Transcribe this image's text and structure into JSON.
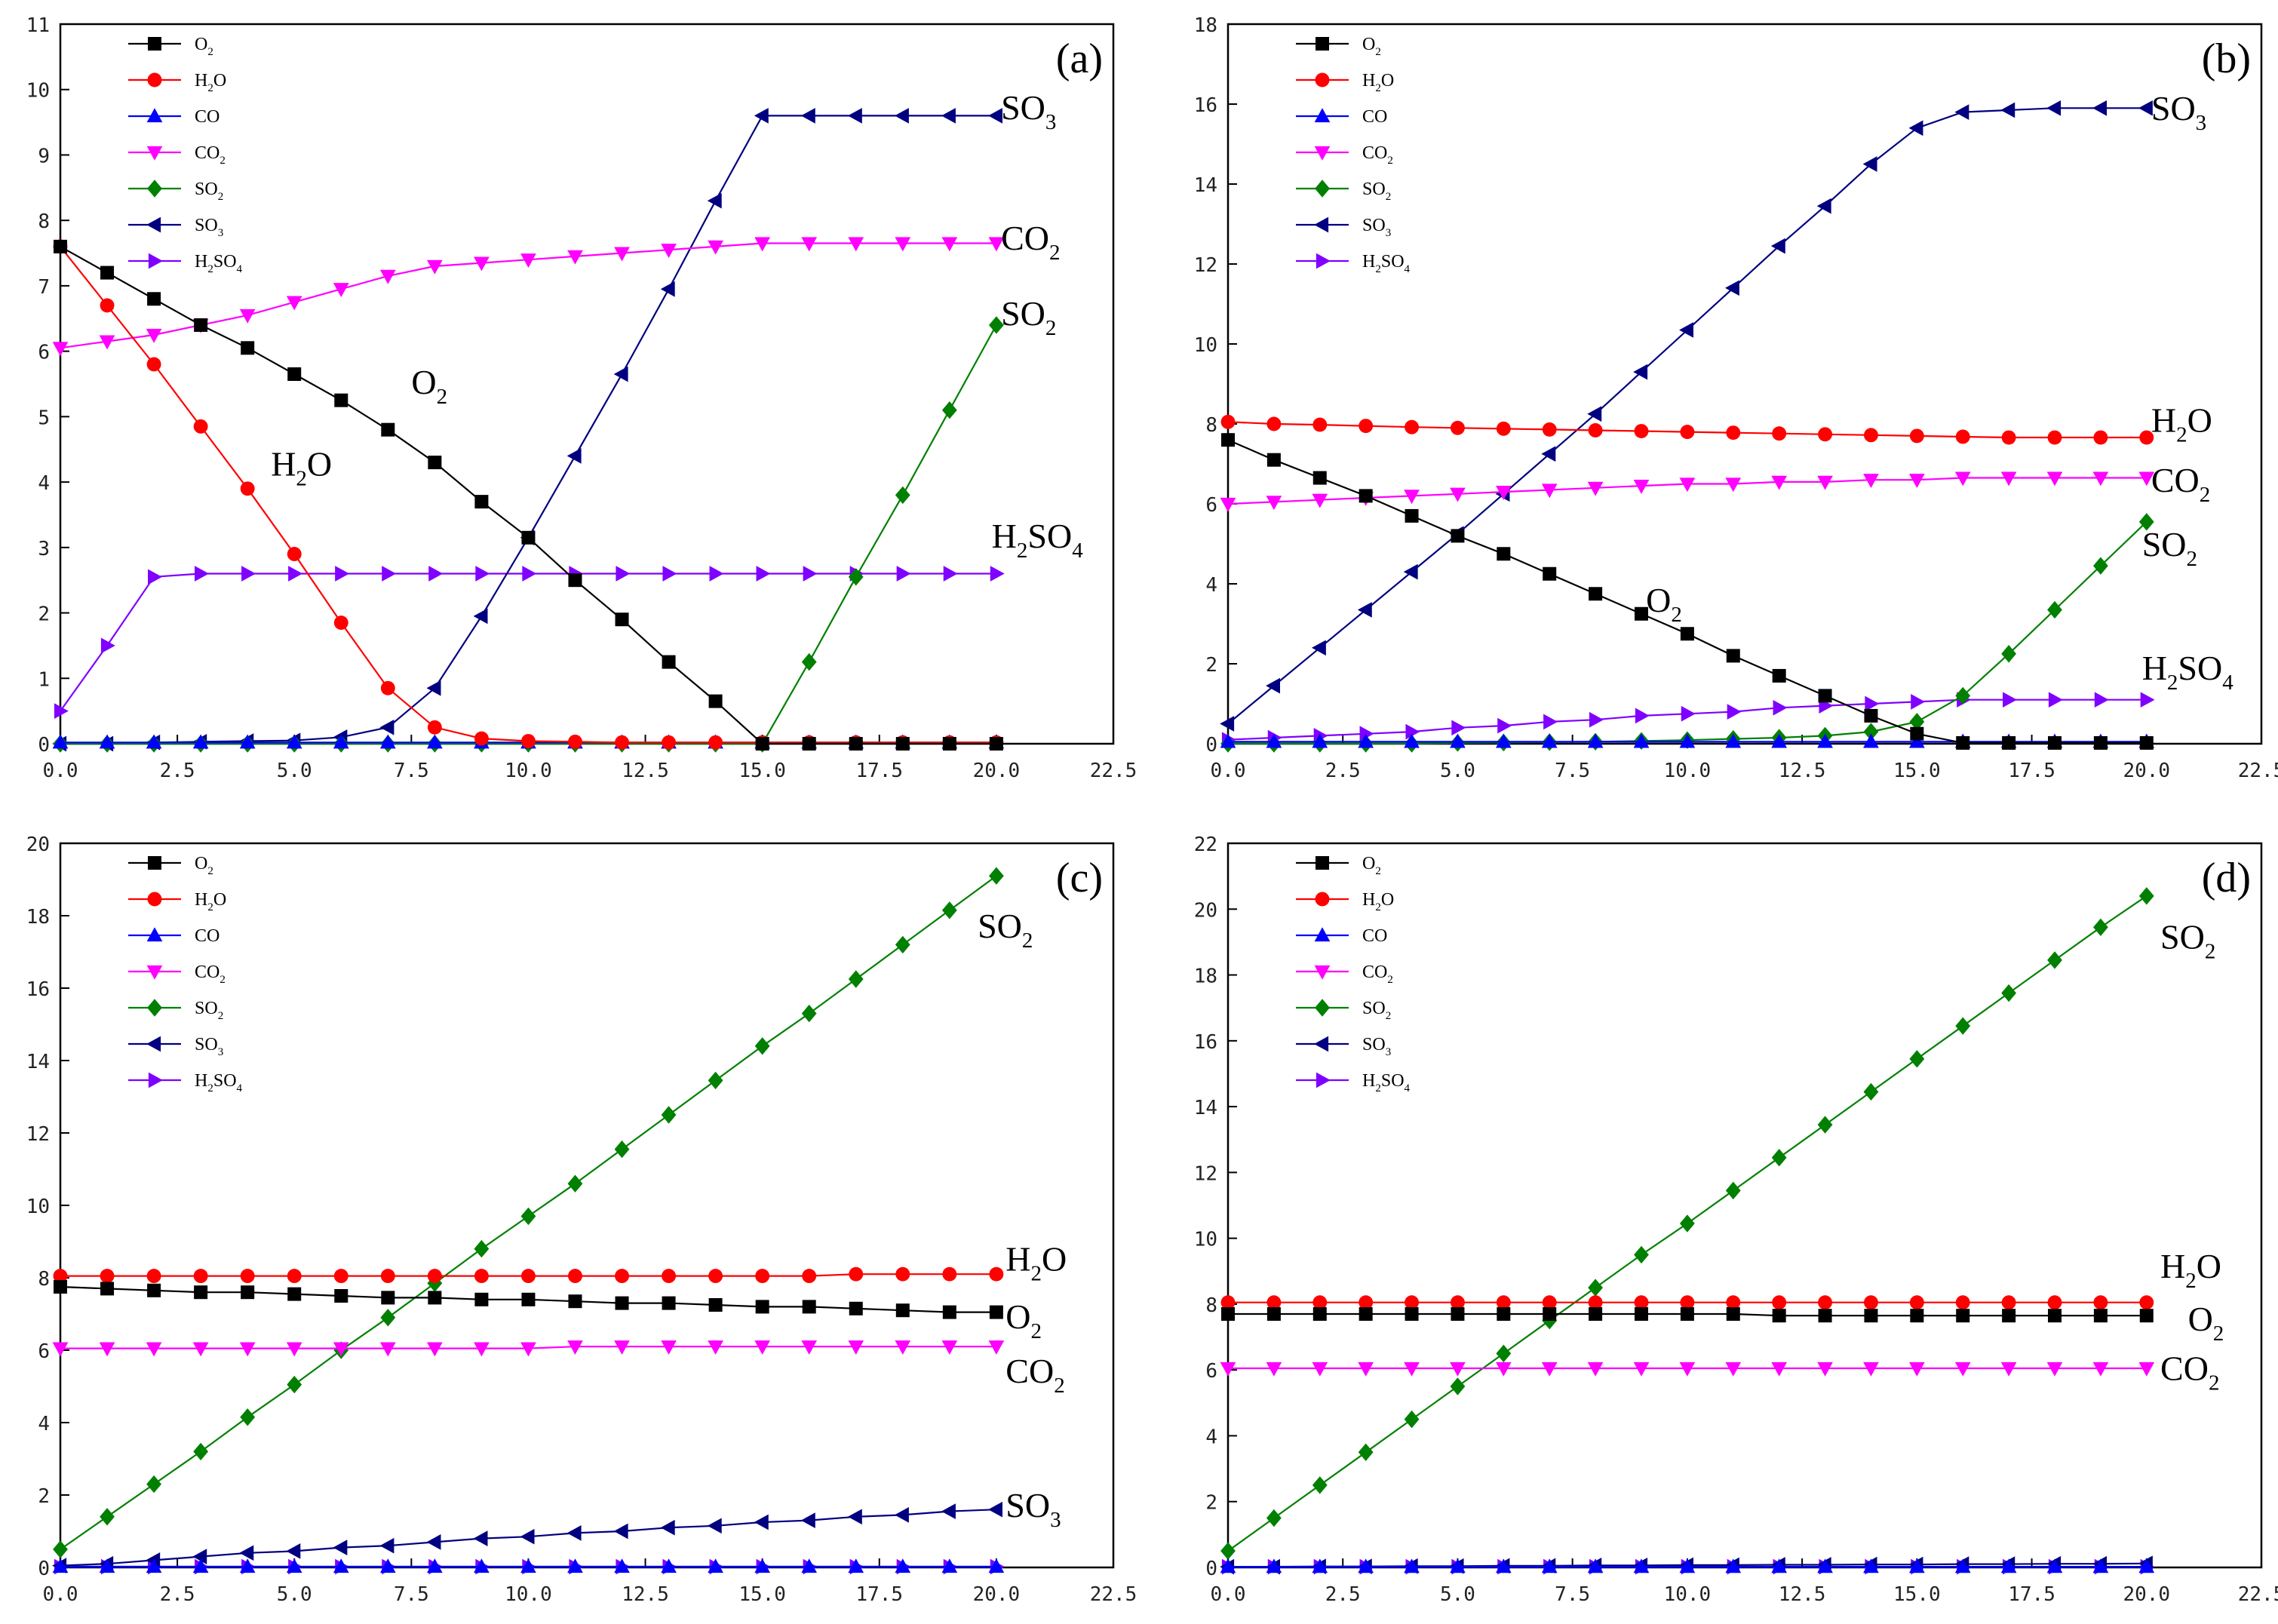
{
  "series_style": [
    {
      "name": "O2",
      "color": "#000000",
      "marker": "square"
    },
    {
      "name": "H2O",
      "color": "#ff0000",
      "marker": "circle"
    },
    {
      "name": "CO",
      "color": "#0000ff",
      "marker": "triangle-up"
    },
    {
      "name": "CO2",
      "color": "#ff00ff",
      "marker": "triangle-down"
    },
    {
      "name": "SO2",
      "color": "#008000",
      "marker": "diamond"
    },
    {
      "name": "SO3",
      "color": "#000080",
      "marker": "triangle-left"
    },
    {
      "name": "H2SO4",
      "color": "#8000ff",
      "marker": "triangle-right"
    }
  ],
  "chart_data": [
    {
      "type": "line",
      "panel_label": "(a)",
      "xlim": [
        0,
        22.5
      ],
      "ylim": [
        0,
        11
      ],
      "xticks": [
        "0.0",
        "2.5",
        "5.0",
        "7.5",
        "10.0",
        "12.5",
        "15.0",
        "17.5",
        "20.0",
        "22.5"
      ],
      "yticks": [
        "0",
        "1",
        "2",
        "3",
        "4",
        "5",
        "6",
        "7",
        "8",
        "9",
        "10",
        "11"
      ],
      "legend": [
        "O2",
        "H2O",
        "CO",
        "CO2",
        "SO2",
        "SO3",
        "H2SO4"
      ],
      "x": [
        0,
        1,
        2,
        3,
        4,
        5,
        6,
        7,
        8,
        9,
        10,
        11,
        12,
        13,
        14,
        15,
        16,
        17,
        18,
        19,
        20
      ],
      "series": [
        {
          "name": "O2",
          "values": [
            7.6,
            7.2,
            6.8,
            6.4,
            6.05,
            5.65,
            5.25,
            4.8,
            4.3,
            3.7,
            3.15,
            2.5,
            1.9,
            1.25,
            0.65,
            0,
            0,
            0,
            0,
            0,
            0
          ]
        },
        {
          "name": "H2O",
          "values": [
            7.6,
            6.7,
            5.8,
            4.85,
            3.9,
            2.9,
            1.85,
            0.85,
            0.25,
            0.08,
            0.04,
            0.03,
            0.02,
            0.02,
            0.02,
            0.02,
            0.02,
            0.02,
            0.02,
            0.02,
            0.02
          ]
        },
        {
          "name": "CO",
          "values": [
            0.02,
            0.02,
            0.02,
            0.02,
            0.02,
            0.02,
            0.02,
            0.02,
            0.02,
            0.02,
            0.02,
            0.02,
            0.02,
            0.02,
            0.02,
            0.02,
            0.02,
            0.02,
            0.02,
            0.02,
            0.02
          ]
        },
        {
          "name": "CO2",
          "values": [
            6.05,
            6.15,
            6.25,
            6.4,
            6.55,
            6.75,
            6.95,
            7.15,
            7.3,
            7.35,
            7.4,
            7.45,
            7.5,
            7.55,
            7.6,
            7.65,
            7.65,
            7.65,
            7.65,
            7.65,
            7.65
          ]
        },
        {
          "name": "SO2",
          "values": [
            0,
            0,
            0,
            0,
            0,
            0,
            0,
            0,
            0,
            0,
            0,
            0,
            0,
            0,
            0,
            0,
            1.25,
            2.55,
            3.8,
            5.1,
            6.4
          ]
        },
        {
          "name": "SO3",
          "values": [
            0,
            0,
            0.02,
            0.03,
            0.04,
            0.05,
            0.1,
            0.25,
            0.85,
            1.95,
            3.15,
            4.4,
            5.65,
            6.95,
            8.3,
            9.6,
            9.6,
            9.6,
            9.6,
            9.6,
            9.6
          ]
        },
        {
          "name": "H2SO4",
          "values": [
            0.5,
            1.5,
            2.55,
            2.6,
            2.6,
            2.6,
            2.6,
            2.6,
            2.6,
            2.6,
            2.6,
            2.6,
            2.6,
            2.6,
            2.6,
            2.6,
            2.6,
            2.6,
            2.6,
            2.6,
            2.6
          ]
        }
      ],
      "annotations": [
        {
          "sub": [
            "SO",
            "3"
          ],
          "x": 20.1,
          "y": 9.55
        },
        {
          "sub": [
            "CO",
            "2"
          ],
          "x": 20.1,
          "y": 7.55
        },
        {
          "sub": [
            "SO",
            "2"
          ],
          "x": 20.1,
          "y": 6.4
        },
        {
          "sub": [
            "O",
            "2"
          ],
          "x": 7.5,
          "y": 5.35
        },
        {
          "sub": [
            "H",
            "2",
            "O"
          ],
          "x": 4.5,
          "y": 4.1
        },
        {
          "sub": [
            "H",
            "2",
            "SO",
            "4"
          ],
          "x": 19.9,
          "y": 3.0
        }
      ]
    },
    {
      "type": "line",
      "panel_label": "(b)",
      "xlim": [
        0,
        22.5
      ],
      "ylim": [
        0,
        18
      ],
      "xticks": [
        "0.0",
        "2.5",
        "5.0",
        "7.5",
        "10.0",
        "12.5",
        "15.0",
        "17.5",
        "20.0",
        "22.5"
      ],
      "yticks": [
        "0",
        "2",
        "4",
        "6",
        "8",
        "10",
        "12",
        "14",
        "16",
        "18"
      ],
      "legend": [
        "O2",
        "H2O",
        "CO",
        "CO2",
        "SO2",
        "SO3",
        "H2SO4"
      ],
      "x": [
        0,
        1,
        2,
        3,
        4,
        5,
        6,
        7,
        8,
        9,
        10,
        11,
        12,
        13,
        14,
        15,
        16,
        17,
        18,
        19,
        20
      ],
      "series": [
        {
          "name": "O2",
          "values": [
            7.6,
            7.1,
            6.65,
            6.2,
            5.7,
            5.2,
            4.75,
            4.25,
            3.75,
            3.25,
            2.75,
            2.2,
            1.7,
            1.2,
            0.7,
            0.25,
            0.02,
            0.02,
            0.02,
            0.02,
            0.02
          ]
        },
        {
          "name": "H2O",
          "values": [
            8.05,
            8.0,
            7.98,
            7.95,
            7.92,
            7.9,
            7.88,
            7.86,
            7.84,
            7.82,
            7.8,
            7.78,
            7.76,
            7.74,
            7.72,
            7.7,
            7.68,
            7.66,
            7.66,
            7.66,
            7.66
          ]
        },
        {
          "name": "CO",
          "values": [
            0.05,
            0.05,
            0.05,
            0.05,
            0.05,
            0.05,
            0.05,
            0.05,
            0.05,
            0.05,
            0.05,
            0.05,
            0.05,
            0.05,
            0.05,
            0.05,
            0.05,
            0.05,
            0.05,
            0.05,
            0.05
          ]
        },
        {
          "name": "CO2",
          "values": [
            6.0,
            6.05,
            6.1,
            6.15,
            6.2,
            6.25,
            6.3,
            6.35,
            6.4,
            6.45,
            6.5,
            6.5,
            6.55,
            6.55,
            6.6,
            6.6,
            6.65,
            6.65,
            6.65,
            6.65,
            6.65
          ]
        },
        {
          "name": "SO2",
          "values": [
            0,
            0,
            0,
            0,
            0,
            0.02,
            0.03,
            0.04,
            0.05,
            0.07,
            0.09,
            0.12,
            0.15,
            0.2,
            0.3,
            0.55,
            1.2,
            2.25,
            3.35,
            4.45,
            5.55
          ]
        },
        {
          "name": "SO3",
          "values": [
            0.5,
            1.45,
            2.4,
            3.35,
            4.3,
            5.25,
            6.25,
            7.25,
            8.25,
            9.3,
            10.35,
            11.4,
            12.45,
            13.45,
            14.5,
            15.4,
            15.8,
            15.85,
            15.9,
            15.9,
            15.9
          ]
        },
        {
          "name": "H2SO4",
          "values": [
            0.1,
            0.15,
            0.2,
            0.25,
            0.3,
            0.4,
            0.45,
            0.55,
            0.6,
            0.7,
            0.75,
            0.8,
            0.9,
            0.95,
            1.0,
            1.05,
            1.1,
            1.1,
            1.1,
            1.1,
            1.1
          ]
        }
      ],
      "annotations": [
        {
          "sub": [
            "SO",
            "3"
          ],
          "x": 20.1,
          "y": 15.6
        },
        {
          "sub": [
            "H",
            "2",
            "O"
          ],
          "x": 20.1,
          "y": 7.8
        },
        {
          "sub": [
            "CO",
            "2"
          ],
          "x": 20.1,
          "y": 6.3
        },
        {
          "sub": [
            "SO",
            "2"
          ],
          "x": 19.9,
          "y": 4.7
        },
        {
          "sub": [
            "O",
            "2"
          ],
          "x": 9.1,
          "y": 3.3
        },
        {
          "sub": [
            "H",
            "2",
            "SO",
            "4"
          ],
          "x": 19.9,
          "y": 1.6
        }
      ]
    },
    {
      "type": "line",
      "panel_label": "(c)",
      "xlim": [
        0,
        22.5
      ],
      "ylim": [
        0,
        20
      ],
      "xticks": [
        "0.0",
        "2.5",
        "5.0",
        "7.5",
        "10.0",
        "12.5",
        "15.0",
        "17.5",
        "20.0",
        "22.5"
      ],
      "yticks": [
        "0",
        "2",
        "4",
        "6",
        "8",
        "10",
        "12",
        "14",
        "16",
        "18",
        "20"
      ],
      "legend": [
        "O2",
        "H2O",
        "CO",
        "CO2",
        "SO2",
        "SO3",
        "H2SO4"
      ],
      "x": [
        0,
        1,
        2,
        3,
        4,
        5,
        6,
        7,
        8,
        9,
        10,
        11,
        12,
        13,
        14,
        15,
        16,
        17,
        18,
        19,
        20
      ],
      "series": [
        {
          "name": "O2",
          "values": [
            7.75,
            7.7,
            7.65,
            7.6,
            7.6,
            7.55,
            7.5,
            7.45,
            7.45,
            7.4,
            7.4,
            7.35,
            7.3,
            7.3,
            7.25,
            7.2,
            7.2,
            7.15,
            7.1,
            7.05,
            7.05
          ]
        },
        {
          "name": "H2O",
          "values": [
            8.05,
            8.05,
            8.05,
            8.05,
            8.05,
            8.05,
            8.05,
            8.05,
            8.05,
            8.05,
            8.05,
            8.05,
            8.05,
            8.05,
            8.05,
            8.05,
            8.05,
            8.1,
            8.1,
            8.1,
            8.1
          ]
        },
        {
          "name": "CO",
          "values": [
            0.02,
            0.02,
            0.02,
            0.02,
            0.02,
            0.02,
            0.02,
            0.02,
            0.02,
            0.02,
            0.02,
            0.02,
            0.02,
            0.02,
            0.02,
            0.02,
            0.02,
            0.02,
            0.02,
            0.02,
            0.02
          ]
        },
        {
          "name": "CO2",
          "values": [
            6.05,
            6.05,
            6.05,
            6.05,
            6.05,
            6.05,
            6.05,
            6.05,
            6.05,
            6.05,
            6.05,
            6.1,
            6.1,
            6.1,
            6.1,
            6.1,
            6.1,
            6.1,
            6.1,
            6.1,
            6.1
          ]
        },
        {
          "name": "SO2",
          "values": [
            0.5,
            1.4,
            2.3,
            3.2,
            4.15,
            5.05,
            6.0,
            6.9,
            7.85,
            8.8,
            9.7,
            10.6,
            11.55,
            12.5,
            13.45,
            14.4,
            15.3,
            16.25,
            17.2,
            18.15,
            19.1
          ]
        },
        {
          "name": "SO3",
          "values": [
            0.05,
            0.1,
            0.2,
            0.3,
            0.4,
            0.45,
            0.55,
            0.6,
            0.7,
            0.8,
            0.85,
            0.95,
            1.0,
            1.1,
            1.15,
            1.25,
            1.3,
            1.4,
            1.45,
            1.55,
            1.6
          ]
        },
        {
          "name": "H2SO4",
          "values": [
            0.02,
            0.02,
            0.02,
            0.02,
            0.02,
            0.02,
            0.02,
            0.02,
            0.02,
            0.02,
            0.02,
            0.02,
            0.02,
            0.02,
            0.02,
            0.02,
            0.02,
            0.02,
            0.02,
            0.02,
            0.02
          ]
        }
      ],
      "annotations": [
        {
          "sub": [
            "SO",
            "2"
          ],
          "x": 19.6,
          "y": 17.4
        },
        {
          "sub": [
            "H",
            "2",
            "O"
          ],
          "x": 20.2,
          "y": 8.2
        },
        {
          "sub": [
            "O",
            "2"
          ],
          "x": 20.2,
          "y": 6.6
        },
        {
          "sub": [
            "CO",
            "2"
          ],
          "x": 20.2,
          "y": 5.1
        },
        {
          "sub": [
            "SO",
            "3"
          ],
          "x": 20.2,
          "y": 1.4
        }
      ]
    },
    {
      "type": "line",
      "panel_label": "(d)",
      "xlim": [
        0,
        22.5
      ],
      "ylim": [
        0,
        22
      ],
      "xticks": [
        "0.0",
        "2.5",
        "5.0",
        "7.5",
        "10.0",
        "12.5",
        "15.0",
        "17.5",
        "20.0",
        "22.5"
      ],
      "yticks": [
        "0",
        "2",
        "4",
        "6",
        "8",
        "10",
        "12",
        "14",
        "16",
        "18",
        "20",
        "22"
      ],
      "legend": [
        "O2",
        "H2O",
        "CO",
        "CO2",
        "SO2",
        "SO3",
        "H2SO4"
      ],
      "x": [
        0,
        1,
        2,
        3,
        4,
        5,
        6,
        7,
        8,
        9,
        10,
        11,
        12,
        13,
        14,
        15,
        16,
        17,
        18,
        19,
        20
      ],
      "series": [
        {
          "name": "O2",
          "values": [
            7.7,
            7.7,
            7.7,
            7.7,
            7.7,
            7.7,
            7.7,
            7.7,
            7.7,
            7.7,
            7.7,
            7.7,
            7.65,
            7.65,
            7.65,
            7.65,
            7.65,
            7.65,
            7.65,
            7.65,
            7.65
          ]
        },
        {
          "name": "H2O",
          "values": [
            8.05,
            8.05,
            8.05,
            8.05,
            8.05,
            8.05,
            8.05,
            8.05,
            8.05,
            8.05,
            8.05,
            8.05,
            8.05,
            8.05,
            8.05,
            8.05,
            8.05,
            8.05,
            8.05,
            8.05,
            8.05
          ]
        },
        {
          "name": "CO",
          "values": [
            0.02,
            0.02,
            0.02,
            0.02,
            0.02,
            0.02,
            0.02,
            0.02,
            0.02,
            0.02,
            0.02,
            0.02,
            0.02,
            0.02,
            0.02,
            0.02,
            0.02,
            0.02,
            0.02,
            0.02,
            0.02
          ]
        },
        {
          "name": "CO2",
          "values": [
            6.05,
            6.05,
            6.05,
            6.05,
            6.05,
            6.05,
            6.05,
            6.05,
            6.05,
            6.05,
            6.05,
            6.05,
            6.05,
            6.05,
            6.05,
            6.05,
            6.05,
            6.05,
            6.05,
            6.05,
            6.05
          ]
        },
        {
          "name": "SO2",
          "values": [
            0.5,
            1.5,
            2.5,
            3.5,
            4.5,
            5.5,
            6.5,
            7.5,
            8.5,
            9.5,
            10.45,
            11.45,
            12.45,
            13.45,
            14.45,
            15.45,
            16.45,
            17.45,
            18.45,
            19.45,
            20.4
          ]
        },
        {
          "name": "SO3",
          "values": [
            0.02,
            0.02,
            0.03,
            0.03,
            0.04,
            0.04,
            0.05,
            0.05,
            0.06,
            0.06,
            0.07,
            0.07,
            0.08,
            0.08,
            0.09,
            0.09,
            0.1,
            0.1,
            0.11,
            0.11,
            0.12
          ]
        },
        {
          "name": "H2SO4",
          "values": [
            0.02,
            0.02,
            0.02,
            0.02,
            0.02,
            0.02,
            0.02,
            0.02,
            0.02,
            0.02,
            0.02,
            0.02,
            0.02,
            0.02,
            0.02,
            0.02,
            0.02,
            0.02,
            0.02,
            0.02,
            0.02
          ]
        }
      ],
      "annotations": [
        {
          "sub": [
            "SO",
            "2"
          ],
          "x": 20.3,
          "y": 18.8
        },
        {
          "sub": [
            "H",
            "2",
            "O"
          ],
          "x": 20.3,
          "y": 8.8
        },
        {
          "sub": [
            "O",
            "2"
          ],
          "x": 20.9,
          "y": 7.2
        },
        {
          "sub": [
            "CO",
            "2"
          ],
          "x": 20.3,
          "y": 5.7
        }
      ]
    }
  ]
}
